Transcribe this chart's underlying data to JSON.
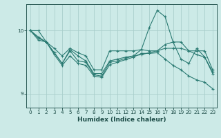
{
  "xlabel": "Humidex (Indice chaleur)",
  "background_color": "#cceae7",
  "line_color": "#2a7a72",
  "grid_color": "#aacfcc",
  "xlim": [
    -0.5,
    23.5
  ],
  "ylim": [
    8.78,
    10.42
  ],
  "yticks": [
    9,
    10
  ],
  "xticks": [
    0,
    1,
    2,
    3,
    4,
    5,
    6,
    7,
    8,
    9,
    10,
    11,
    12,
    13,
    14,
    15,
    16,
    17,
    18,
    19,
    20,
    21,
    22,
    23
  ],
  "series": [
    [
      10.0,
      10.0,
      9.82,
      9.72,
      9.6,
      9.72,
      9.65,
      9.6,
      9.38,
      9.38,
      9.68,
      9.68,
      9.68,
      9.68,
      9.7,
      9.68,
      9.68,
      9.78,
      9.82,
      9.82,
      9.68,
      9.68,
      9.68,
      9.38
    ],
    [
      10.0,
      9.88,
      9.82,
      9.65,
      9.48,
      9.68,
      9.52,
      9.5,
      9.3,
      9.28,
      9.5,
      9.52,
      9.56,
      9.6,
      9.7,
      10.05,
      10.32,
      10.22,
      9.82,
      9.55,
      9.48,
      9.72,
      9.58,
      9.35
    ],
    [
      10.0,
      9.85,
      9.82,
      9.62,
      9.45,
      9.6,
      9.48,
      9.45,
      9.28,
      9.26,
      9.46,
      9.5,
      9.54,
      9.58,
      9.64,
      9.64,
      9.65,
      9.55,
      9.45,
      9.38,
      9.28,
      9.22,
      9.18,
      9.08
    ],
    [
      10.0,
      9.9,
      9.82,
      9.65,
      9.48,
      9.7,
      9.6,
      9.52,
      9.32,
      9.32,
      9.52,
      9.55,
      9.58,
      9.6,
      9.62,
      9.65,
      9.68,
      9.72,
      9.72,
      9.72,
      9.68,
      9.62,
      9.58,
      9.32
    ]
  ]
}
